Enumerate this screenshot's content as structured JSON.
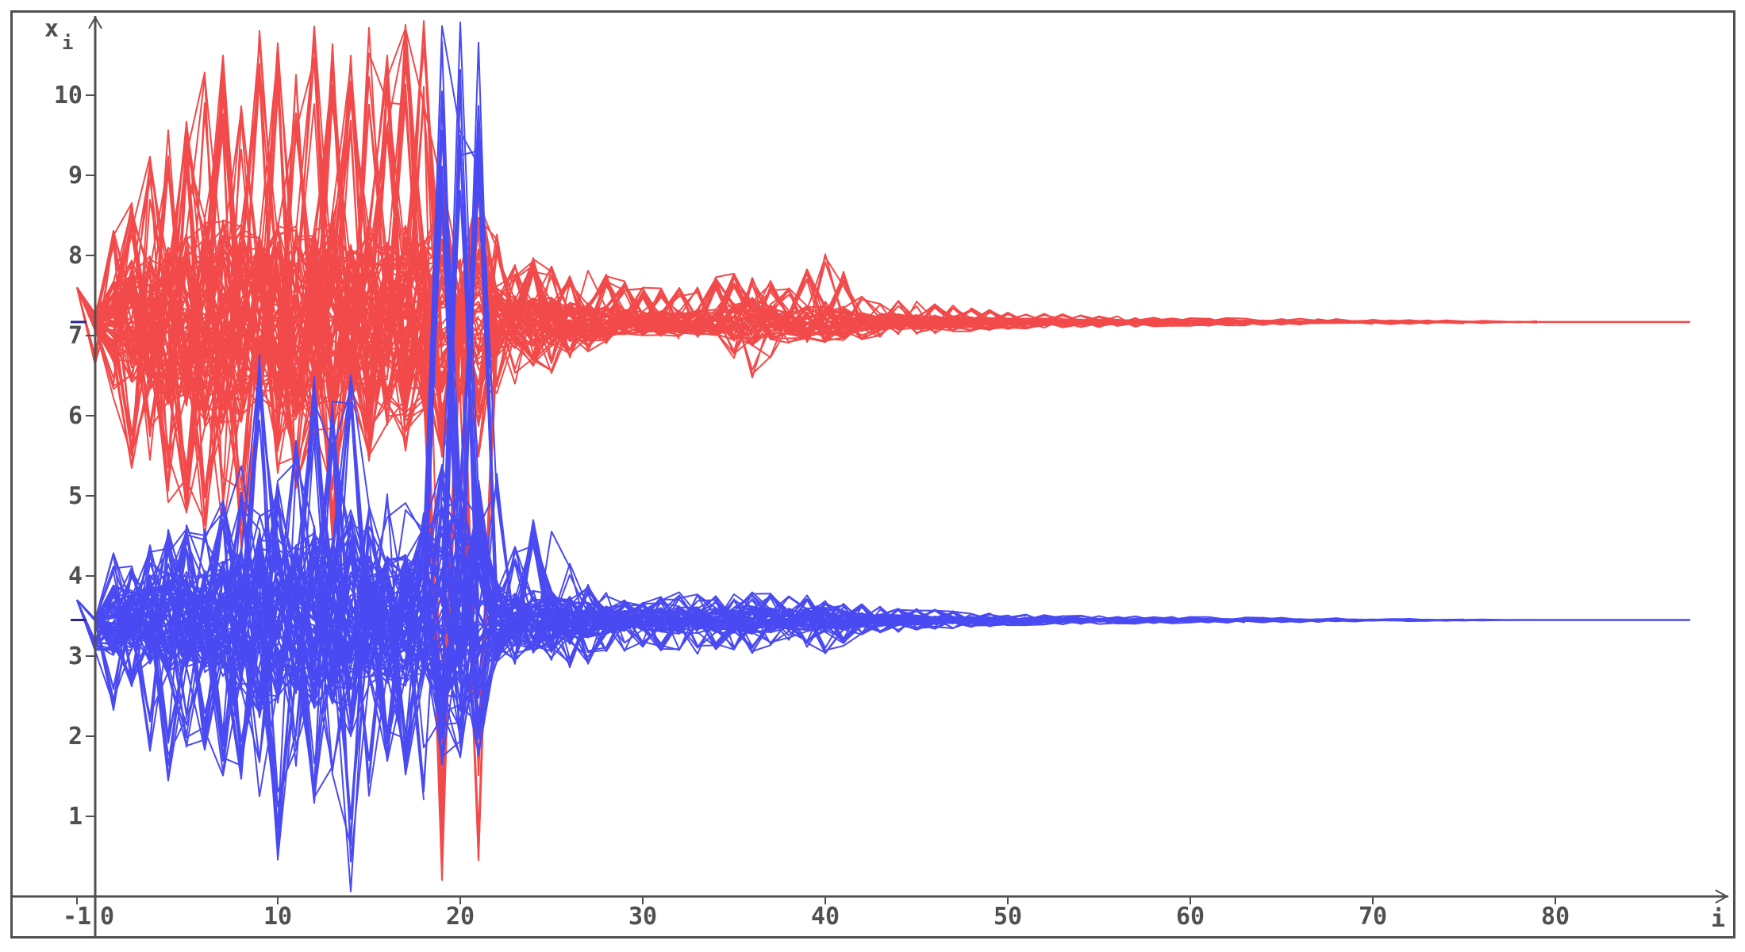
{
  "chart_data": {
    "type": "line",
    "title": "",
    "xlabel": "i",
    "ylabel": "x",
    "ylabel_subscript": "i",
    "xlim": [
      -1,
      88
    ],
    "ylim": [
      0,
      11
    ],
    "origin_label": "0",
    "x_ticks": [
      -1,
      10,
      20,
      30,
      40,
      50,
      60,
      70,
      80
    ],
    "x_tick_labels": [
      "-1",
      "10",
      "20",
      "30",
      "40",
      "50",
      "60",
      "70",
      "80"
    ],
    "y_ticks": [
      1,
      2,
      3,
      4,
      5,
      6,
      7,
      8,
      9,
      10
    ],
    "y_tick_labels": [
      "1",
      "2",
      "3",
      "4",
      "5",
      "6",
      "7",
      "8",
      "9",
      "10"
    ],
    "grid": false,
    "legend": "none",
    "colors": {
      "series_a": "#F24A4A",
      "series_b": "#4A4AF2",
      "axis": "#505050"
    },
    "series": [
      {
        "color": "#F24A4A",
        "converges_to": 7.17,
        "start_value": 7.6,
        "x": [
          -1,
          0,
          1,
          2,
          3,
          4,
          5,
          6,
          7,
          8,
          9,
          10,
          11,
          12,
          13,
          14,
          15,
          16,
          17,
          18,
          19,
          20,
          21,
          22,
          23,
          24,
          25,
          26,
          27,
          28,
          29,
          30,
          32,
          34,
          36,
          38,
          40,
          42,
          44,
          46,
          48,
          50,
          55,
          60,
          65,
          70,
          75,
          80,
          88
        ],
        "upper": [
          7.6,
          7.1,
          8.5,
          8.7,
          9.3,
          9.6,
          9.8,
          10.3,
          10.5,
          10.0,
          11,
          11,
          10.5,
          11,
          11,
          10.5,
          11,
          10.5,
          11,
          11,
          8.5,
          8.0,
          7.9,
          8.3,
          7.9,
          8.0,
          7.9,
          7.8,
          7.9,
          7.8,
          7.7,
          7.6,
          7.6,
          7.75,
          7.8,
          7.6,
          8.1,
          7.5,
          7.45,
          7.4,
          7.35,
          7.3,
          7.25,
          7.22,
          7.22,
          7.2,
          7.19,
          7.18,
          7.17
        ],
        "lower": [
          7.6,
          6.6,
          6.2,
          5.2,
          5.4,
          4.9,
          4.7,
          4.3,
          4.5,
          4.3,
          6.0,
          5.2,
          5.0,
          5.7,
          4.4,
          6.1,
          5.4,
          5.8,
          5.5,
          6.0,
          0.2,
          6.2,
          0.2,
          6.2,
          6.4,
          6.6,
          6.5,
          6.7,
          6.8,
          6.9,
          7.0,
          7.0,
          6.95,
          7.0,
          6.4,
          6.9,
          6.9,
          6.95,
          7.0,
          7.02,
          7.05,
          7.08,
          7.1,
          7.12,
          7.13,
          7.14,
          7.15,
          7.16,
          7.17
        ]
      },
      {
        "color": "#4A4AF2",
        "converges_to": 3.45,
        "start_value": 3.7,
        "x": [
          -1,
          0,
          1,
          2,
          3,
          4,
          5,
          6,
          7,
          8,
          9,
          10,
          11,
          12,
          13,
          14,
          15,
          16,
          17,
          18,
          19,
          20,
          21,
          22,
          23,
          24,
          25,
          26,
          27,
          28,
          29,
          30,
          32,
          34,
          36,
          38,
          40,
          42,
          44,
          46,
          48,
          50,
          55,
          60,
          65,
          70,
          75,
          80,
          88
        ],
        "upper": [
          3.7,
          3.1,
          4.3,
          4.2,
          4.4,
          4.6,
          4.7,
          4.8,
          5.0,
          5.4,
          7.0,
          5.2,
          5.8,
          6.5,
          6.2,
          6.6,
          4.9,
          5.2,
          5.3,
          4.8,
          10.9,
          11,
          11,
          5.5,
          4.4,
          4.7,
          4.6,
          4.2,
          3.9,
          3.8,
          3.7,
          3.7,
          3.8,
          3.75,
          3.8,
          3.85,
          3.7,
          3.65,
          3.6,
          3.58,
          3.55,
          3.53,
          3.5,
          3.49,
          3.48,
          3.47,
          3.46,
          3.46,
          3.45
        ],
        "lower": [
          3.7,
          3.05,
          2.3,
          2.5,
          1.8,
          1.4,
          1.8,
          1.8,
          1.5,
          1.3,
          1.0,
          0.4,
          1.5,
          1.1,
          1.4,
          0.0,
          1.2,
          1.6,
          1.5,
          1.2,
          2.0,
          2.9,
          3.0,
          3.1,
          2.9,
          3.0,
          2.9,
          2.8,
          2.9,
          3.0,
          3.05,
          3.1,
          3.0,
          3.05,
          3.0,
          3.2,
          3.0,
          3.25,
          3.3,
          3.33,
          3.36,
          3.38,
          3.4,
          3.41,
          3.42,
          3.43,
          3.44,
          3.44,
          3.45
        ]
      }
    ]
  }
}
